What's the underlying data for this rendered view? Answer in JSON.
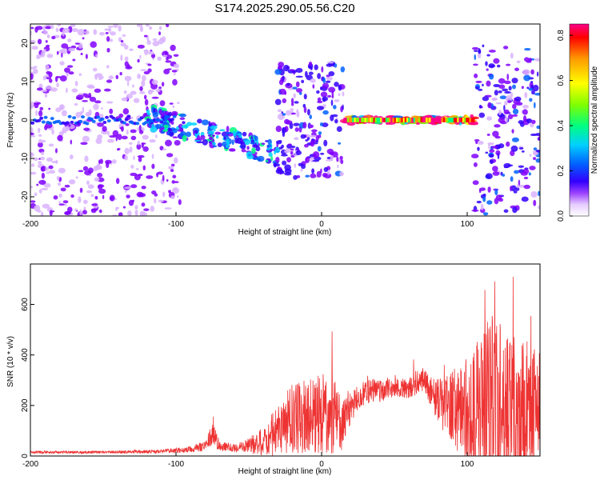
{
  "title": "S174.2025.290.05.56.C20",
  "chart_data": [
    {
      "type": "heatmap",
      "xlabel": "Height of straight line (km)",
      "ylabel": "Frequency (Hz)",
      "xlim": [
        -200,
        150
      ],
      "ylim": [
        -25,
        25
      ],
      "xticks": [
        -200,
        -100,
        0,
        100
      ],
      "yticks": [
        -20,
        -10,
        0,
        10,
        20
      ],
      "colorbar": {
        "label": "Normalized spectral amplitude",
        "range": [
          0,
          0.85
        ],
        "ticks": [
          0.0,
          0.2,
          0.4,
          0.6,
          0.8
        ],
        "colors": [
          "#ffffff",
          "#d9b3ff",
          "#8000ff",
          "#3300ff",
          "#0060ff",
          "#00d0ff",
          "#00ff80",
          "#80ff00",
          "#ffff00",
          "#ff9900",
          "#ff0000",
          "#ff0088"
        ]
      },
      "features": [
        {
          "name": "broadband noise",
          "x_range": [
            -200,
            -97
          ],
          "freq_range": [
            -25,
            25
          ],
          "amplitude": 0.12
        },
        {
          "name": "descending track",
          "x_range": [
            -120,
            -30
          ],
          "freq_range": [
            -12,
            2
          ],
          "amplitude": 0.3
        },
        {
          "name": "burst",
          "x_range": [
            -30,
            15
          ],
          "freq_range": [
            -15,
            15
          ],
          "amplitude": 0.2
        },
        {
          "name": "narrowband line",
          "x_range": [
            15,
            105
          ],
          "freq_range": [
            -1,
            1
          ],
          "amplitude": 0.8
        },
        {
          "name": "scatter",
          "x_range": [
            105,
            150
          ],
          "freq_range": [
            -25,
            20
          ],
          "amplitude": 0.2
        }
      ]
    },
    {
      "type": "line",
      "xlabel": "Height of straight line (km)",
      "ylabel": "SNR (10 * v/v)",
      "xlim": [
        -200,
        150
      ],
      "ylim": [
        0,
        760
      ],
      "xticks": [
        -200,
        -100,
        0,
        100
      ],
      "yticks": [
        0,
        200,
        400,
        600
      ],
      "color": "#ee3333",
      "series": [
        {
          "name": "SNR envelope",
          "x": [
            -200,
            -150,
            -110,
            -90,
            -80,
            -75,
            -70,
            -60,
            -50,
            -40,
            -30,
            -20,
            -10,
            0,
            10,
            15,
            20,
            25,
            30,
            40,
            50,
            60,
            65,
            70,
            75,
            80,
            90,
            95,
            100,
            110,
            115,
            120,
            130,
            140,
            150
          ],
          "base": [
            15,
            15,
            18,
            25,
            40,
            90,
            40,
            30,
            40,
            60,
            100,
            150,
            160,
            170,
            160,
            120,
            190,
            230,
            250,
            260,
            270,
            265,
            290,
            300,
            260,
            210,
            200,
            180,
            150,
            160,
            170,
            200,
            180,
            170,
            180
          ],
          "noise": [
            5,
            5,
            8,
            12,
            20,
            50,
            20,
            15,
            30,
            60,
            100,
            140,
            150,
            160,
            150,
            100,
            60,
            50,
            50,
            50,
            40,
            40,
            50,
            50,
            60,
            100,
            150,
            180,
            250,
            300,
            400,
            350,
            300,
            280,
            250
          ]
        }
      ]
    }
  ]
}
